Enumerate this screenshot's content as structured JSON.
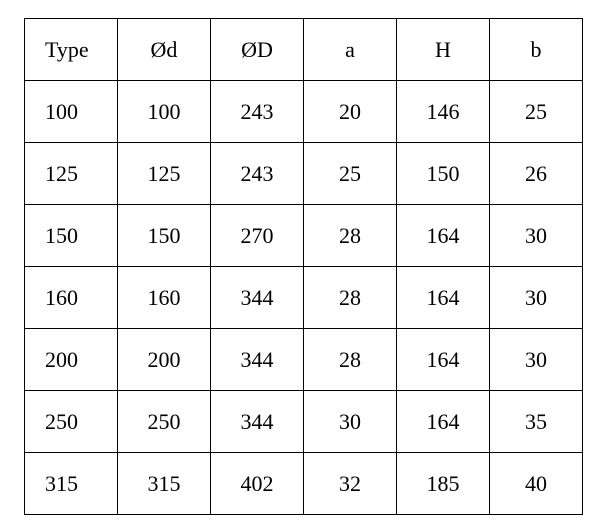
{
  "table": {
    "headers": [
      "Type",
      "Ød",
      "ØD",
      "a",
      "H",
      "b"
    ],
    "rows": [
      [
        "100",
        "100",
        "243",
        "20",
        "146",
        "25"
      ],
      [
        "125",
        "125",
        "243",
        "25",
        "150",
        "26"
      ],
      [
        "150",
        "150",
        "270",
        "28",
        "164",
        "30"
      ],
      [
        "160",
        "160",
        "344",
        "28",
        "164",
        "30"
      ],
      [
        "200",
        "200",
        "344",
        "28",
        "164",
        "30"
      ],
      [
        "250",
        "250",
        "344",
        "30",
        "164",
        "35"
      ],
      [
        "315",
        "315",
        "402",
        "32",
        "185",
        "40"
      ]
    ]
  }
}
